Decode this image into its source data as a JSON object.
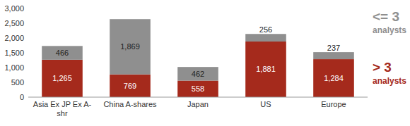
{
  "chart_data": {
    "type": "bar",
    "stacked": true,
    "data_labels": true,
    "grid": false,
    "legend": "right",
    "categories": [
      "Asia Ex JP Ex A-shr",
      "China A-shares",
      "Japan",
      "US",
      "Europe"
    ],
    "series": [
      {
        "name": "> 3 analysts",
        "color": "#a52a1c",
        "values": [
          1265,
          769,
          558,
          1881,
          1284
        ],
        "value_labels": [
          "1,265",
          "769",
          "558",
          "1,881",
          "1,284"
        ]
      },
      {
        "name": "<= 3 analysts",
        "color": "#8f8f8f",
        "values": [
          466,
          1869,
          462,
          256,
          237
        ],
        "value_labels": [
          "466",
          "1,869",
          "462",
          "256",
          "237"
        ]
      }
    ],
    "ylim": [
      0,
      3000
    ],
    "yticks": [
      0,
      500,
      {
        "value": 1000,
        "label": "1,000"
      },
      {
        "value": 1500,
        "label": "1,500"
      },
      {
        "value": 2000,
        "label": "2,000"
      },
      {
        "value": 2500,
        "label": "2,500"
      },
      {
        "value": 3000,
        "label": "3,000"
      }
    ]
  }
}
